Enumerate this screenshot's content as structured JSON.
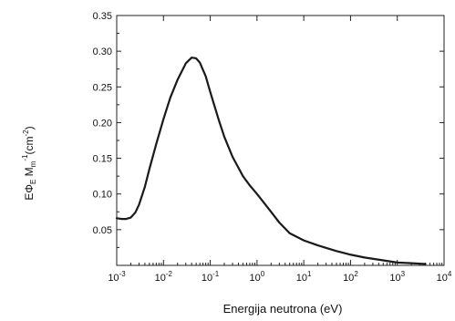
{
  "chart_data": {
    "type": "line",
    "xlabel": "Energija neutrona (eV)",
    "ylabel": {
      "base": "EΦ",
      "base_sub": "E",
      "mid": " M",
      "mid_sub": "m",
      "exp": "-1",
      "unit_open": "(cm",
      "unit_exp": "-2",
      "unit_close": ")"
    },
    "x_scale": "log",
    "xlim": [
      0.001,
      10000
    ],
    "ylim": [
      0,
      0.35
    ],
    "x_ticks": [
      {
        "value": 0.001,
        "base": "10",
        "exp": "-3"
      },
      {
        "value": 0.01,
        "base": "10",
        "exp": "-2"
      },
      {
        "value": 0.1,
        "base": "10",
        "exp": "-1"
      },
      {
        "value": 1,
        "base": "10",
        "exp": "0"
      },
      {
        "value": 10,
        "base": "10",
        "exp": "1"
      },
      {
        "value": 100,
        "base": "10",
        "exp": "2"
      },
      {
        "value": 1000,
        "base": "10",
        "exp": "3"
      },
      {
        "value": 10000,
        "base": "10",
        "exp": "4"
      }
    ],
    "y_ticks": [
      {
        "value": 0.05,
        "label": "0.05"
      },
      {
        "value": 0.1,
        "label": "0.10"
      },
      {
        "value": 0.15,
        "label": "0.15"
      },
      {
        "value": 0.2,
        "label": "0.20"
      },
      {
        "value": 0.25,
        "label": "0.25"
      },
      {
        "value": 0.3,
        "label": "0.30"
      },
      {
        "value": 0.35,
        "label": "0.35"
      }
    ],
    "grid": false,
    "legend": "none",
    "series": [
      {
        "color": "#1a1a1a",
        "x": [
          0.001,
          0.0013,
          0.0016,
          0.002,
          0.0025,
          0.003,
          0.004,
          0.005,
          0.007,
          0.01,
          0.014,
          0.02,
          0.03,
          0.04,
          0.05,
          0.06,
          0.08,
          0.1,
          0.15,
          0.2,
          0.3,
          0.5,
          0.7,
          1,
          2,
          3,
          5,
          10,
          20,
          50,
          100,
          200,
          500,
          1000,
          2000,
          4000
        ],
        "y": [
          0.066,
          0.065,
          0.065,
          0.067,
          0.074,
          0.085,
          0.11,
          0.135,
          0.17,
          0.205,
          0.235,
          0.26,
          0.283,
          0.291,
          0.29,
          0.284,
          0.265,
          0.243,
          0.205,
          0.18,
          0.152,
          0.125,
          0.112,
          0.1,
          0.075,
          0.06,
          0.045,
          0.035,
          0.028,
          0.02,
          0.015,
          0.011,
          0.007,
          0.004,
          0.003,
          0.002
        ]
      }
    ]
  }
}
